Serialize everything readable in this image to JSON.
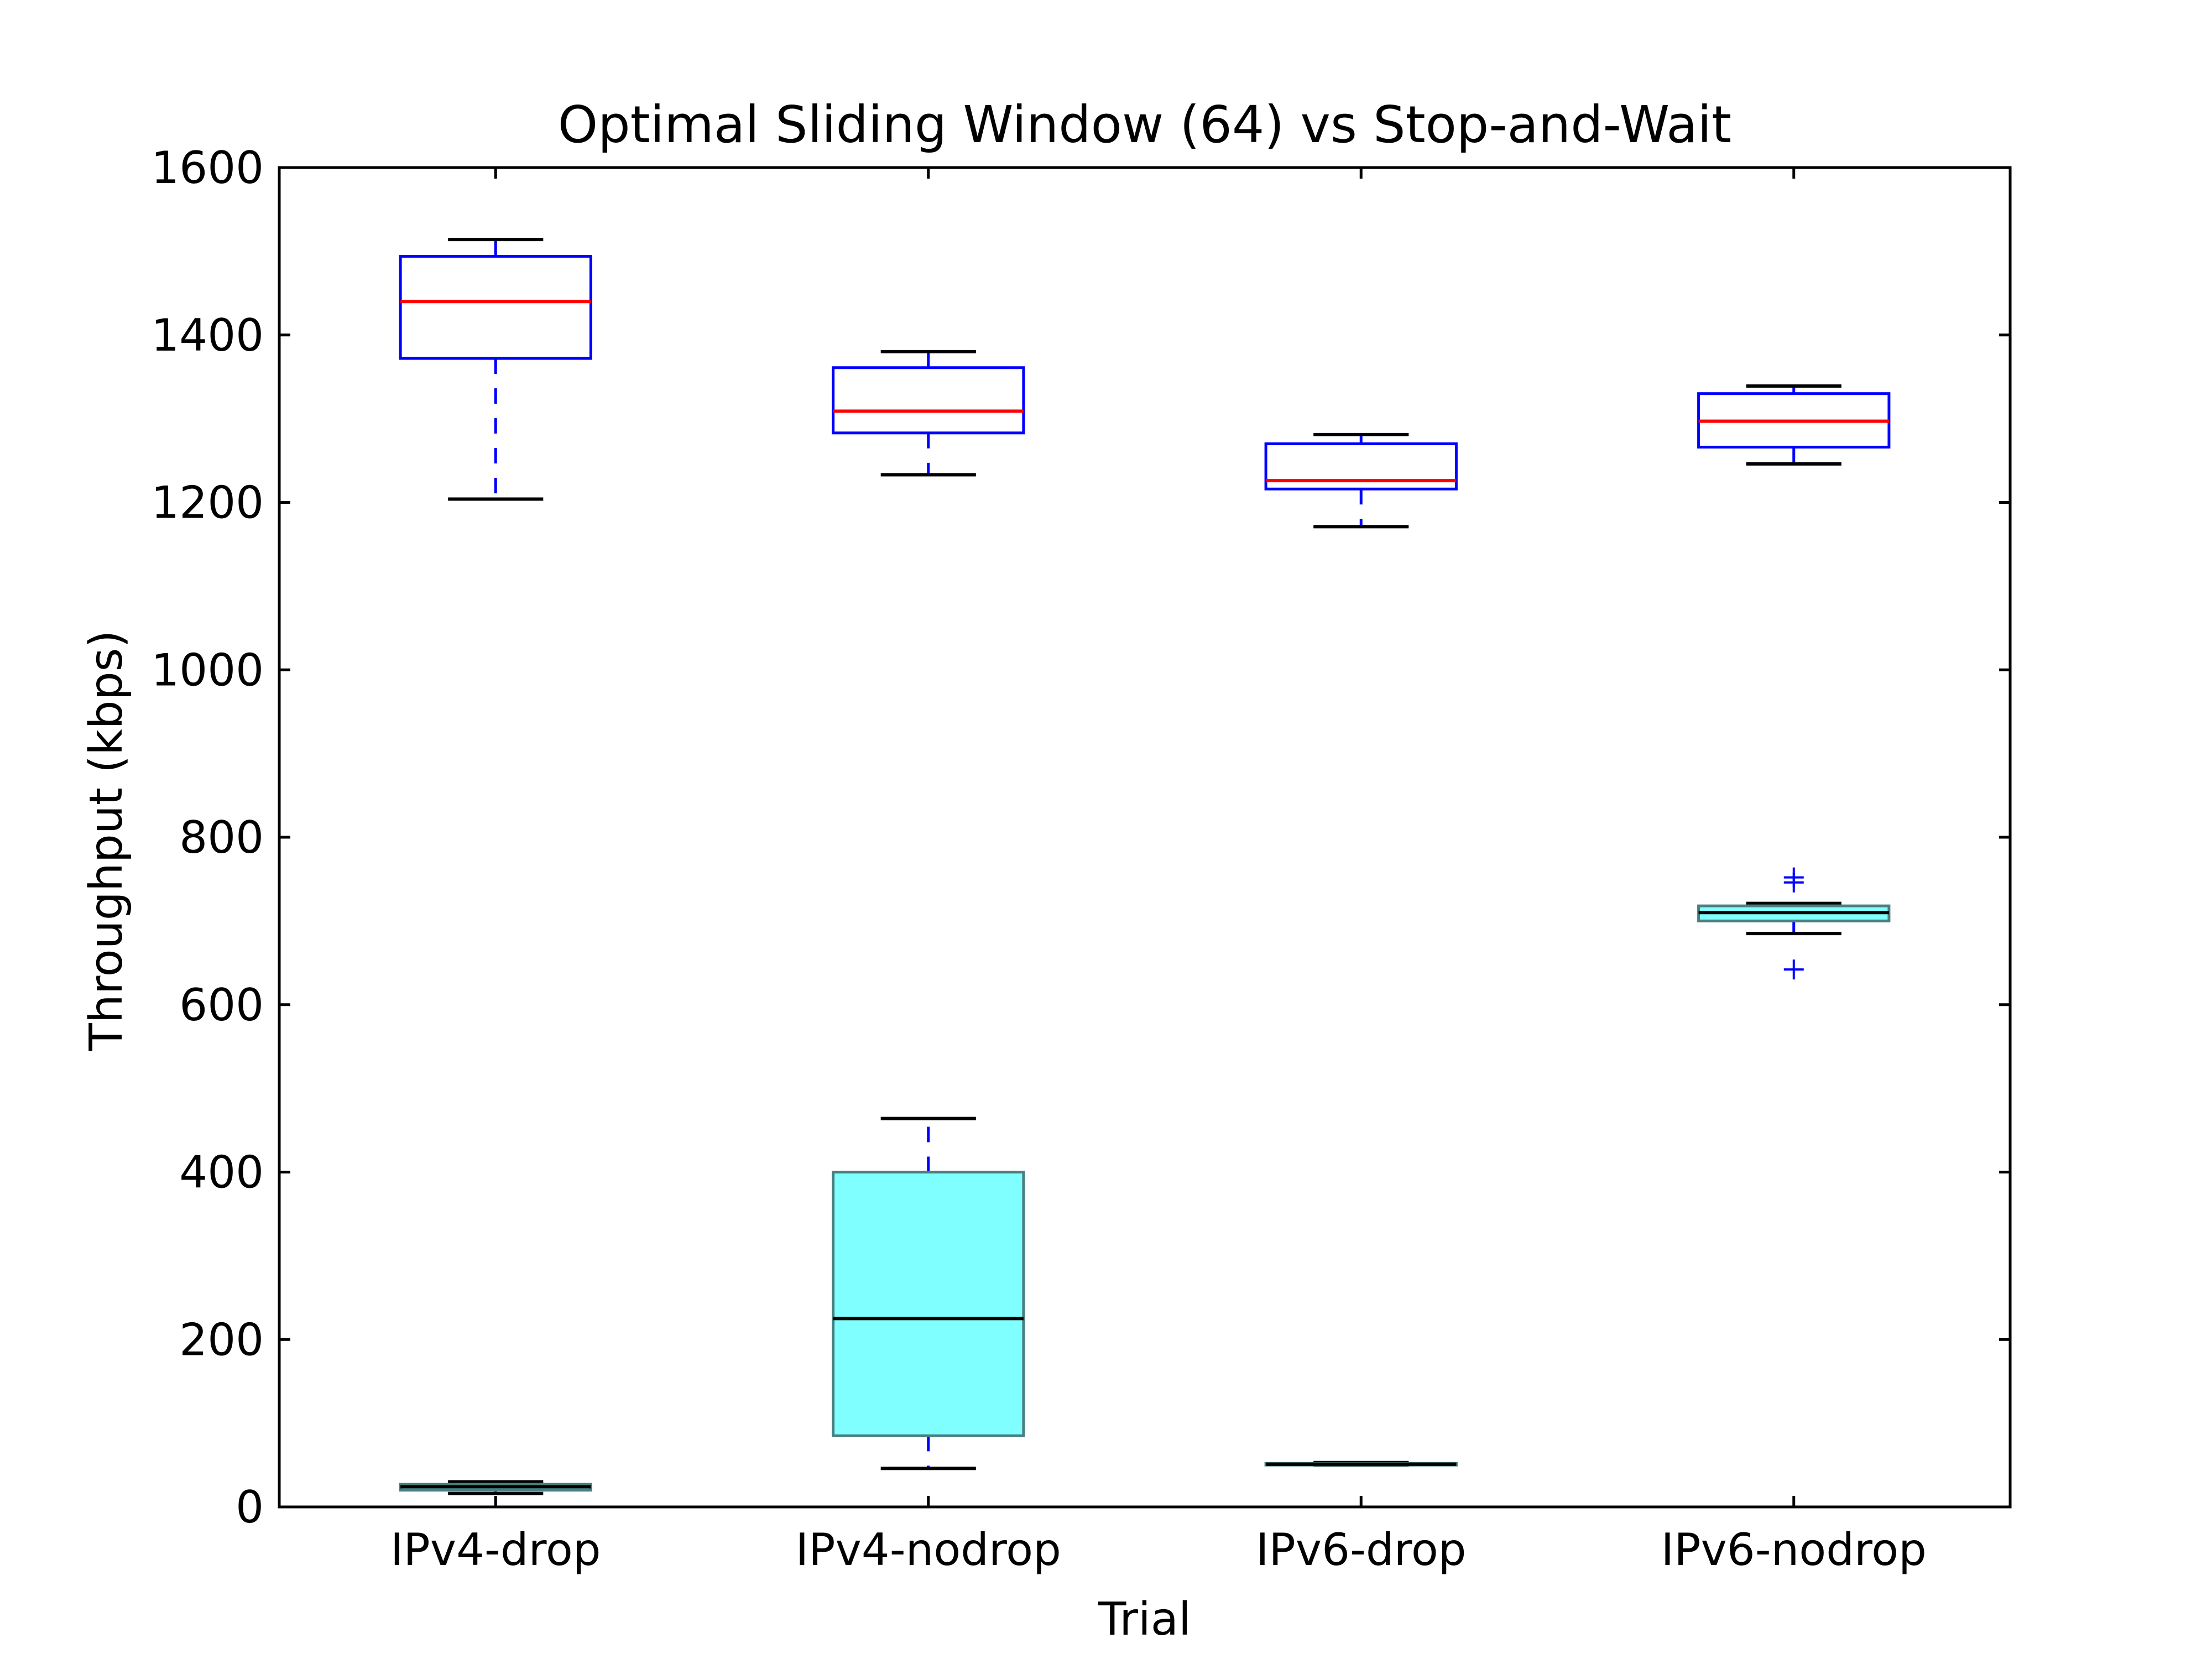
{
  "chart_data": {
    "type": "box",
    "title": "Optimal Sliding Window (64) vs Stop-and-Wait",
    "xlabel": "Trial",
    "ylabel": "Throughput (kbps)",
    "ylim": [
      0,
      1600
    ],
    "yticks": [
      "0",
      "200",
      "400",
      "600",
      "800",
      "1000",
      "1200",
      "1400",
      "1600"
    ],
    "grid": false,
    "categories": [
      "IPv4-drop",
      "IPv4-nodrop",
      "IPv6-drop",
      "IPv6-nodrop"
    ],
    "series": [
      {
        "style": "outline",
        "colors": {
          "box": "#0000ff",
          "median": "#ff0000",
          "whisker": "#0000ff",
          "cap": "#000000"
        },
        "boxes": [
          {
            "category": "IPv4-drop",
            "whislo": 1204,
            "q1": 1372,
            "med": 1440,
            "q3": 1494,
            "whishi": 1514,
            "fliers": []
          },
          {
            "category": "IPv4-nodrop",
            "whislo": 1233,
            "q1": 1283,
            "med": 1309,
            "q3": 1361,
            "whishi": 1380,
            "fliers": []
          },
          {
            "category": "IPv6-drop",
            "whislo": 1171,
            "q1": 1216,
            "med": 1226,
            "q3": 1270,
            "whishi": 1281,
            "fliers": []
          },
          {
            "category": "IPv6-nodrop",
            "whislo": 1246,
            "q1": 1266,
            "med": 1297,
            "q3": 1330,
            "whishi": 1339,
            "fliers": []
          }
        ]
      },
      {
        "style": "filled",
        "colors": {
          "fill": "#7fffff",
          "edge": "#4a7f7f",
          "median": "#000000",
          "whisker": "#0000ff",
          "cap": "#000000",
          "flier": "#0000ff"
        },
        "boxes": [
          {
            "category": "IPv4-drop",
            "whislo": 16,
            "q1": 20,
            "med": 24,
            "q3": 27,
            "whishi": 30,
            "fliers": []
          },
          {
            "category": "IPv4-nodrop",
            "whislo": 46,
            "q1": 85,
            "med": 225,
            "q3": 400,
            "whishi": 464,
            "fliers": []
          },
          {
            "category": "IPv6-drop",
            "whislo": 50,
            "q1": 50,
            "med": 51,
            "q3": 52,
            "whishi": 53,
            "fliers": []
          },
          {
            "category": "IPv6-nodrop",
            "whislo": 685,
            "q1": 700,
            "med": 710,
            "q3": 718,
            "whishi": 721,
            "fliers": [
              752,
              746,
              642
            ]
          }
        ]
      }
    ]
  }
}
